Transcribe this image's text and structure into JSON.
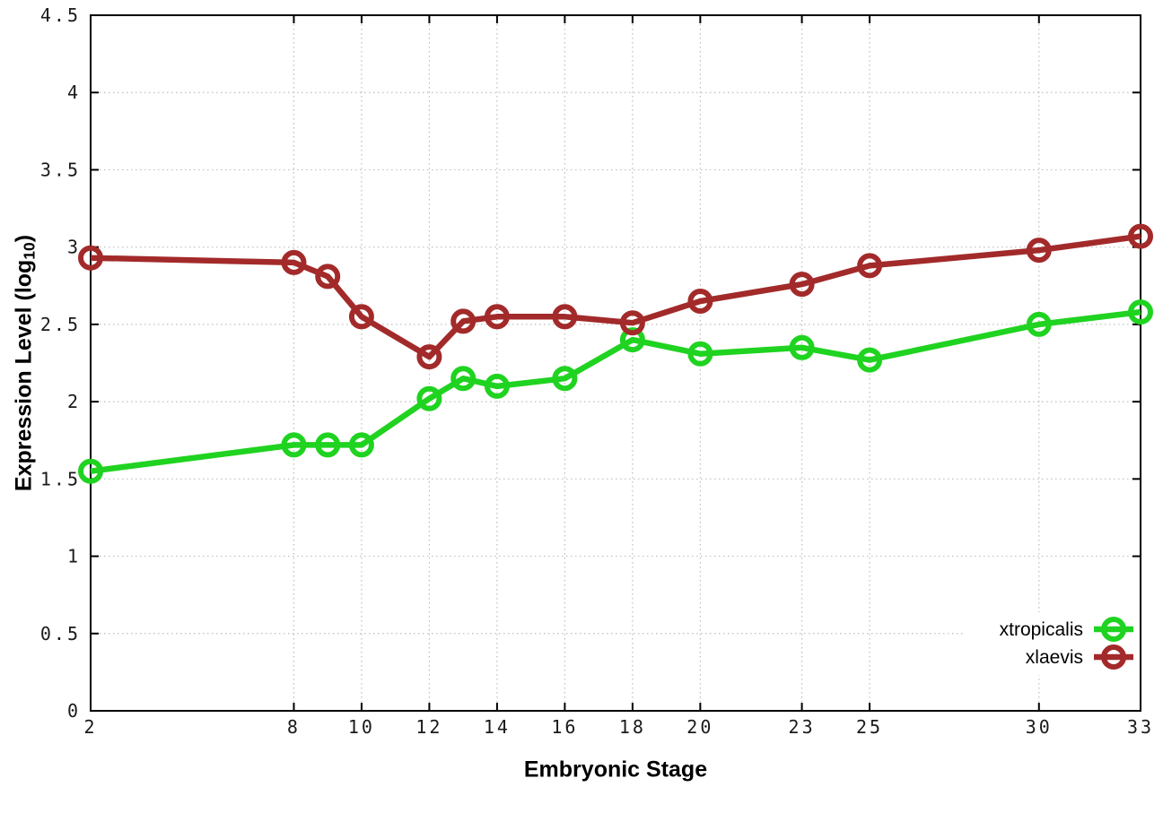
{
  "chart_data": {
    "type": "line",
    "title": "",
    "xlabel": "Embryonic Stage",
    "ylabel": "Expression Level (log10)",
    "ylabel_parts": {
      "main": "Expression Level (log",
      "sub": "10",
      "close": ")"
    },
    "xlim": [
      2,
      33
    ],
    "ylim": [
      0,
      4.5
    ],
    "x_ticks": [
      2,
      8,
      10,
      12,
      14,
      16,
      18,
      20,
      23,
      25,
      30,
      33
    ],
    "y_ticks": [
      0,
      0.5,
      1,
      1.5,
      2,
      2.5,
      3,
      3.5,
      4,
      4.5
    ],
    "grid": true,
    "legend_position": "bottom-right",
    "legend_entries": [
      "xtropicalis",
      "xlaevis"
    ],
    "series": [
      {
        "name": "xtropicalis",
        "color": "#1fd320",
        "points": [
          [
            2,
            1.55
          ],
          [
            8,
            1.72
          ],
          [
            9,
            1.72
          ],
          [
            10,
            1.72
          ],
          [
            12,
            2.02
          ],
          [
            13,
            2.15
          ],
          [
            14,
            2.1
          ],
          [
            16,
            2.15
          ],
          [
            18,
            2.4
          ],
          [
            20,
            2.31
          ],
          [
            23,
            2.35
          ],
          [
            25,
            2.27
          ],
          [
            30,
            2.5
          ],
          [
            33,
            2.58
          ]
        ]
      },
      {
        "name": "xlaevis",
        "color": "#a32a2a",
        "points": [
          [
            2,
            2.93
          ],
          [
            8,
            2.9
          ],
          [
            9,
            2.81
          ],
          [
            10,
            2.55
          ],
          [
            12,
            2.29
          ],
          [
            13,
            2.52
          ],
          [
            14,
            2.55
          ],
          [
            16,
            2.55
          ],
          [
            18,
            2.51
          ],
          [
            20,
            2.65
          ],
          [
            23,
            2.76
          ],
          [
            25,
            2.88
          ],
          [
            30,
            2.98
          ],
          [
            33,
            3.07
          ]
        ]
      }
    ],
    "style": {
      "border_color": "#000000",
      "grid_color": "#bdbdbd",
      "tick_label_color": "#1a1a1a",
      "background": "#ffffff"
    }
  }
}
